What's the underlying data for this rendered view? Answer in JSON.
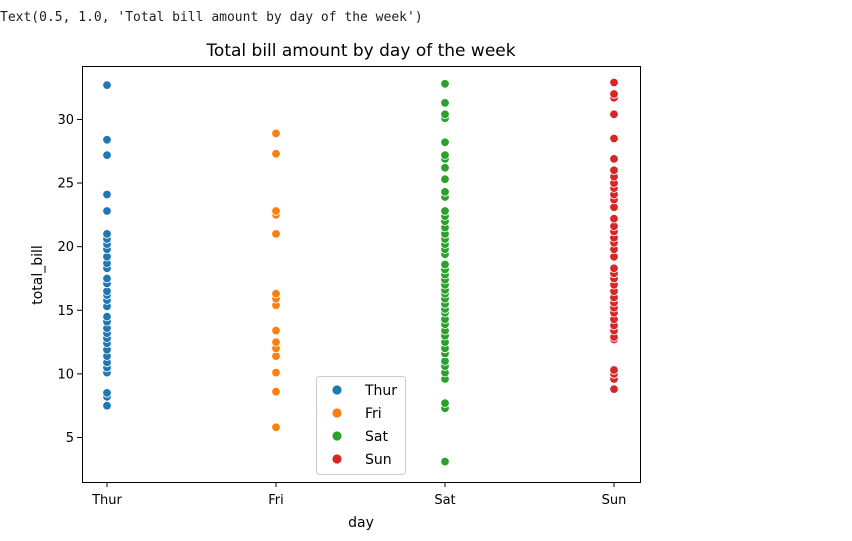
{
  "output_text": "Text(0.5, 1.0, 'Total bill amount by day of the week')",
  "chart_data": {
    "type": "scatter",
    "title": "Total bill amount by day of the week",
    "xlabel": "day",
    "ylabel": "total_bill",
    "categories": [
      "Thur",
      "Fri",
      "Sat",
      "Sun"
    ],
    "yticks": [
      5,
      10,
      15,
      20,
      25,
      30
    ],
    "ylim": [
      1.5,
      34.2
    ],
    "grid": false,
    "legend": {
      "placement": "lower-center",
      "entries": [
        "Thur",
        "Fri",
        "Sat",
        "Sun"
      ]
    },
    "series": [
      {
        "name": "Thur",
        "color": "#1f77b4",
        "values": [
          7.5,
          8.2,
          8.5,
          10.1,
          10.5,
          10.9,
          11.4,
          11.9,
          12.4,
          12.8,
          13.2,
          13.6,
          14.1,
          14.5,
          15.3,
          15.8,
          16.2,
          16.5,
          17.1,
          17.5,
          18.3,
          18.7,
          19.2,
          19.8,
          20.2,
          20.6,
          21.0,
          22.8,
          24.1,
          27.2,
          28.4,
          32.7
        ]
      },
      {
        "name": "Fri",
        "color": "#ff7f0e",
        "values": [
          5.8,
          8.6,
          10.1,
          11.4,
          12.0,
          12.5,
          13.4,
          15.4,
          15.9,
          16.3,
          21.0,
          22.5,
          22.8,
          27.3,
          28.9
        ]
      },
      {
        "name": "Sat",
        "color": "#2ca02c",
        "values": [
          3.1,
          7.3,
          7.7,
          9.6,
          10.1,
          10.6,
          11.0,
          11.6,
          12.0,
          12.5,
          13.0,
          13.4,
          13.9,
          14.3,
          14.8,
          15.1,
          15.5,
          15.9,
          16.3,
          16.6,
          17.0,
          17.4,
          17.8,
          18.2,
          18.6,
          19.4,
          19.8,
          20.2,
          20.6,
          21.0,
          21.5,
          22.0,
          22.4,
          22.8,
          23.9,
          24.3,
          25.3,
          26.2,
          26.9,
          27.2,
          28.2,
          30.1,
          30.4,
          31.3,
          32.8
        ]
      },
      {
        "name": "Sun",
        "color": "#d62728",
        "values": [
          8.8,
          9.6,
          10.0,
          10.3,
          12.7,
          12.9,
          13.4,
          13.8,
          14.3,
          14.8,
          15.2,
          15.6,
          16.0,
          16.5,
          17.0,
          17.5,
          17.9,
          18.3,
          19.2,
          19.8,
          20.3,
          20.7,
          21.2,
          21.6,
          22.2,
          23.1,
          23.7,
          24.1,
          24.6,
          25.0,
          25.5,
          26.0,
          26.9,
          28.5,
          30.4,
          31.7,
          32.0,
          32.9
        ]
      }
    ]
  }
}
